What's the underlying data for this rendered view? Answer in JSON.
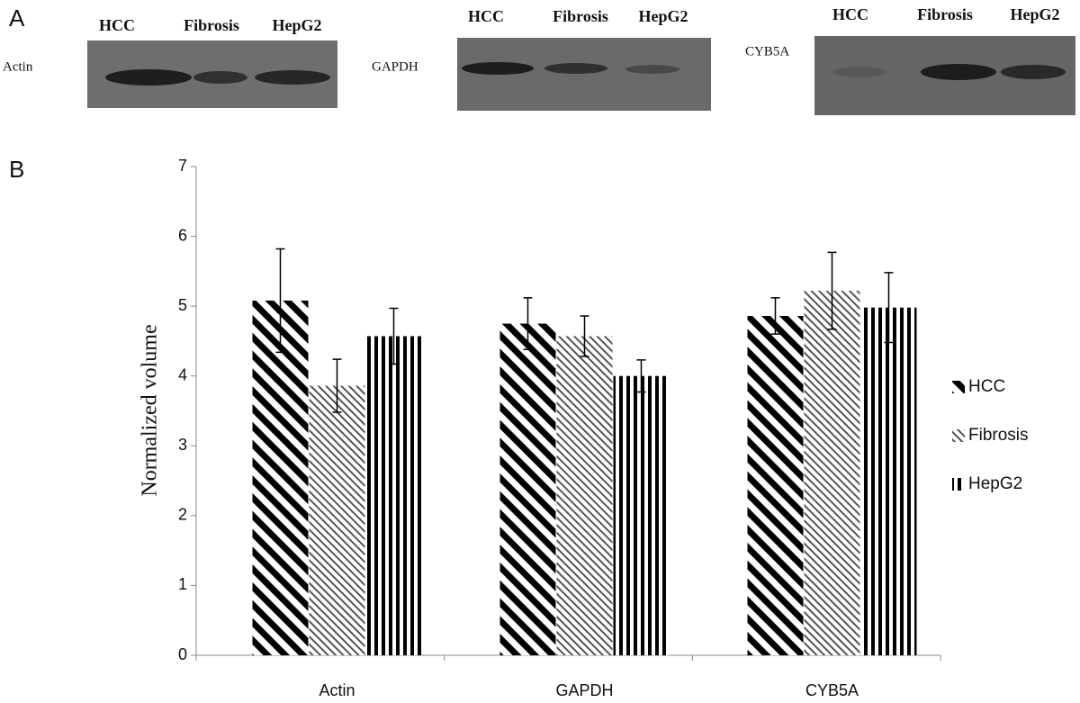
{
  "panel_a": {
    "label": "A",
    "blots": [
      {
        "protein": "Actin",
        "lanes": [
          "HCC",
          "Fibrosis",
          "HepG2"
        ]
      },
      {
        "protein": "GAPDH",
        "lanes": [
          "HCC",
          "Fibrosis",
          "HepG2"
        ]
      },
      {
        "protein": "CYB5A",
        "lanes": [
          "HCC",
          "Fibrosis",
          "HepG2"
        ]
      }
    ]
  },
  "chart_data": {
    "type": "bar",
    "panel_label": "B",
    "y_label": "Normalized volume",
    "categories": [
      "Actin",
      "GAPDH",
      "CYB5A"
    ],
    "series": [
      {
        "name": "HCC",
        "color": "#000000",
        "pattern": "diagonal-thick",
        "values": [
          5.08,
          4.75,
          4.86
        ],
        "errors": [
          0.74,
          0.37,
          0.26
        ]
      },
      {
        "name": "Fibrosis",
        "color": "#555555",
        "pattern": "diagonal-thin",
        "values": [
          3.86,
          4.57,
          5.22
        ],
        "errors": [
          0.38,
          0.29,
          0.55
        ]
      },
      {
        "name": "HepG2",
        "color": "#000000",
        "pattern": "vertical",
        "values": [
          4.57,
          4.0,
          4.98
        ],
        "errors": [
          0.4,
          0.23,
          0.5
        ]
      }
    ],
    "ylim": [
      0,
      7
    ],
    "yticks": [
      0,
      1,
      2,
      3,
      4,
      5,
      6,
      7
    ],
    "legend": "right"
  }
}
